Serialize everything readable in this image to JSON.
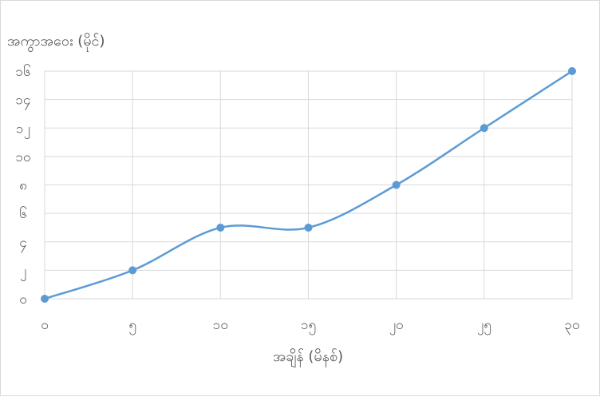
{
  "chart_data": {
    "type": "line",
    "xlabel": "အချိန် (မိနစ်)",
    "ylabel": "အကွာအဝေး (မိုင်)",
    "x": [
      0,
      5,
      10,
      15,
      20,
      25,
      30
    ],
    "x_tick_labels": [
      "၀",
      "၅",
      "၁၀",
      "၁၅",
      "၂၀",
      "၂၅",
      "၃၀"
    ],
    "y_ticks": [
      0,
      2,
      4,
      6,
      8,
      10,
      12,
      14,
      16
    ],
    "y_tick_labels": [
      "၀",
      "၂",
      "၄",
      "၆",
      "၈",
      "၁၀",
      "၁၂",
      "၁၄",
      "၁၆"
    ],
    "series": [
      {
        "values": [
          0,
          2,
          5,
          5,
          8,
          12,
          16
        ]
      }
    ],
    "xlim": [
      0,
      30
    ],
    "ylim": [
      0,
      16
    ],
    "grid": true,
    "smooth": true,
    "legend": "none",
    "colors": {
      "line": "#5b9bd5",
      "grid": "#d9d9d9",
      "text": "#595959"
    }
  }
}
